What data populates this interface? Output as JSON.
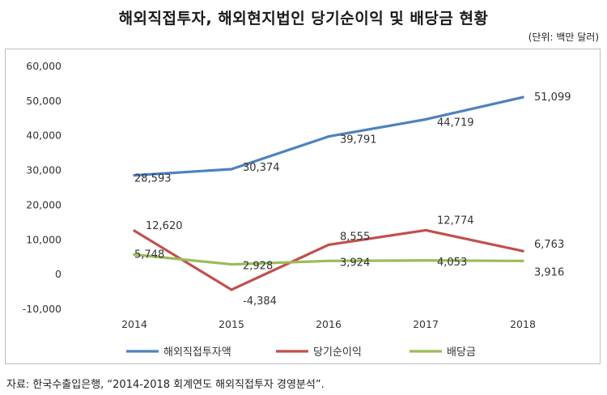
{
  "title": "해외직접투자, 해외현지법인 당기순이익 및 배당금 현황",
  "unit": "(단위: 백만 달러)",
  "source": "자료: 한국수출입은행, “2014-2018 회계연도 해외직접투자 경영분석”.",
  "chart_data": {
    "type": "line",
    "categories": [
      "2014",
      "2015",
      "2016",
      "2017",
      "2018"
    ],
    "ylim": [
      -10000,
      60000
    ],
    "yticks": [
      -10000,
      0,
      10000,
      20000,
      30000,
      40000,
      50000,
      60000
    ],
    "ytick_labels": [
      "-10,000",
      "0",
      "10,000",
      "20,000",
      "30,000",
      "40,000",
      "50,000",
      "60,000"
    ],
    "grid": false,
    "legend": "bottom",
    "series": [
      {
        "name": "해외직접투자액",
        "color": "#4f81bd",
        "values": [
          28593,
          30374,
          39791,
          44719,
          51099
        ],
        "labels": [
          "28,593",
          "30,374",
          "39,791",
          "44,719",
          "51,099"
        ]
      },
      {
        "name": "당기순이익",
        "color": "#c0504d",
        "values": [
          12620,
          -4384,
          8555,
          12774,
          6763
        ],
        "labels": [
          "12,620",
          "-4,384",
          "8,555",
          "12,774",
          "6,763"
        ]
      },
      {
        "name": "배당금",
        "color": "#9bbb59",
        "values": [
          5748,
          2928,
          3924,
          4053,
          3916
        ],
        "labels": [
          "5,748",
          "2,928",
          "3,924",
          "4,053",
          "3,916"
        ]
      }
    ]
  }
}
